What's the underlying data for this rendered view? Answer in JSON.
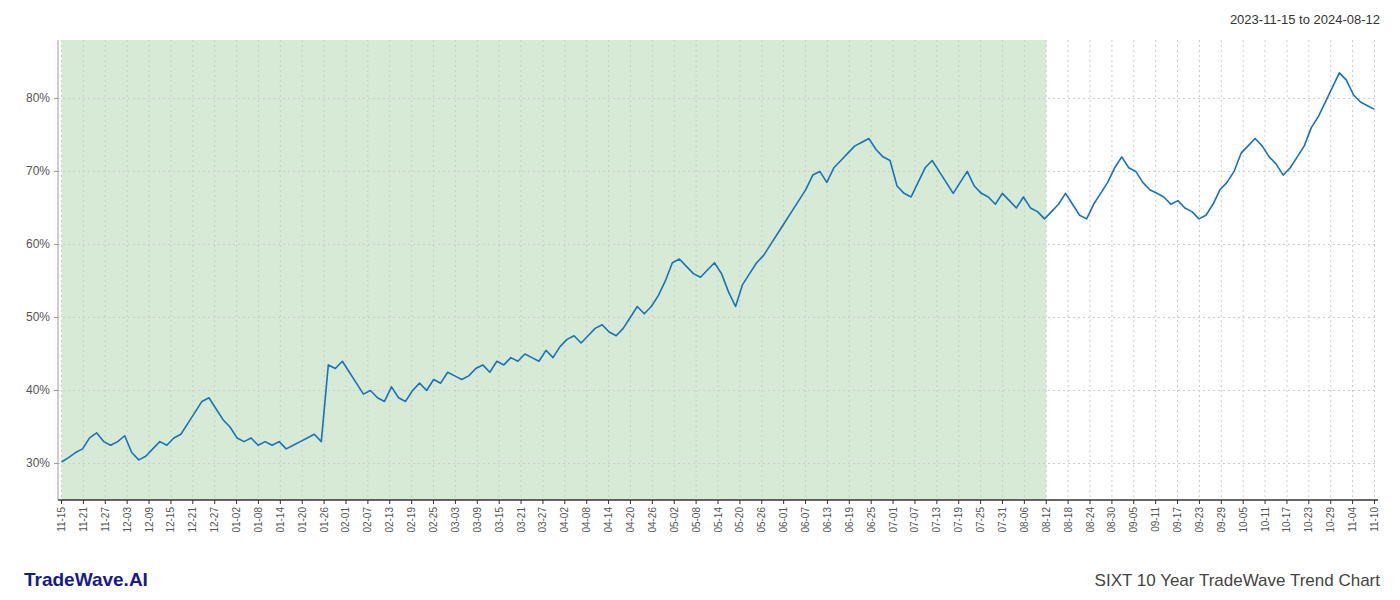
{
  "chart_data": {
    "type": "line",
    "title": "SIXT 10 Year TradeWave Trend Chart",
    "subtitle": "2023-11-15 to 2024-08-12",
    "annotations": [
      "TradeWave.AI"
    ],
    "color": "#1a72b8",
    "grid": true,
    "shaded_region": {
      "range": [
        0,
        140.25
      ],
      "color": "#d6ead6"
    },
    "xlim": [
      -0.5,
      187.5
    ],
    "xticks": [
      {
        "value": 0,
        "label": "11-15"
      },
      {
        "value": 3.116667,
        "label": "11-21"
      },
      {
        "value": 6.233333,
        "label": "11-27"
      },
      {
        "value": 9.35,
        "label": "12-03"
      },
      {
        "value": 12.466667,
        "label": "12-09"
      },
      {
        "value": 15.583333,
        "label": "12-15"
      },
      {
        "value": 18.7,
        "label": "12-21"
      },
      {
        "value": 21.816667,
        "label": "12-27"
      },
      {
        "value": 24.933333,
        "label": "01-02"
      },
      {
        "value": 28.05,
        "label": "01-08"
      },
      {
        "value": 31.166667,
        "label": "01-14"
      },
      {
        "value": 34.283333,
        "label": "01-20"
      },
      {
        "value": 37.4,
        "label": "01-26"
      },
      {
        "value": 40.516667,
        "label": "02-01"
      },
      {
        "value": 43.633333,
        "label": "02-07"
      },
      {
        "value": 46.75,
        "label": "02-13"
      },
      {
        "value": 49.866667,
        "label": "02-19"
      },
      {
        "value": 52.983333,
        "label": "02-25"
      },
      {
        "value": 56.1,
        "label": "03-03"
      },
      {
        "value": 59.216667,
        "label": "03-09"
      },
      {
        "value": 62.333333,
        "label": "03-15"
      },
      {
        "value": 65.45,
        "label": "03-21"
      },
      {
        "value": 68.566667,
        "label": "03-27"
      },
      {
        "value": 71.683333,
        "label": "04-02"
      },
      {
        "value": 74.8,
        "label": "04-08"
      },
      {
        "value": 77.916667,
        "label": "04-14"
      },
      {
        "value": 81.033333,
        "label": "04-20"
      },
      {
        "value": 84.15,
        "label": "04-26"
      },
      {
        "value": 87.266667,
        "label": "05-02"
      },
      {
        "value": 90.383333,
        "label": "05-08"
      },
      {
        "value": 93.5,
        "label": "05-14"
      },
      {
        "value": 96.616667,
        "label": "05-20"
      },
      {
        "value": 99.733333,
        "label": "05-26"
      },
      {
        "value": 102.85,
        "label": "06-01"
      },
      {
        "value": 105.966667,
        "label": "06-07"
      },
      {
        "value": 109.083333,
        "label": "06-13"
      },
      {
        "value": 112.2,
        "label": "06-19"
      },
      {
        "value": 115.316667,
        "label": "06-25"
      },
      {
        "value": 118.433333,
        "label": "07-01"
      },
      {
        "value": 121.55,
        "label": "07-07"
      },
      {
        "value": 124.666667,
        "label": "07-13"
      },
      {
        "value": 127.783333,
        "label": "07-19"
      },
      {
        "value": 130.9,
        "label": "07-25"
      },
      {
        "value": 134.016667,
        "label": "07-31"
      },
      {
        "value": 137.133333,
        "label": "08-06"
      },
      {
        "value": 140.25,
        "label": "08-12"
      },
      {
        "value": 143.366667,
        "label": "08-18"
      },
      {
        "value": 146.483333,
        "label": "08-24"
      },
      {
        "value": 149.6,
        "label": "08-30"
      },
      {
        "value": 152.716667,
        "label": "09-05"
      },
      {
        "value": 155.833333,
        "label": "09-11"
      },
      {
        "value": 158.95,
        "label": "09-17"
      },
      {
        "value": 162.066667,
        "label": "09-23"
      },
      {
        "value": 165.183333,
        "label": "09-29"
      },
      {
        "value": 168.3,
        "label": "10-05"
      },
      {
        "value": 171.416667,
        "label": "10-11"
      },
      {
        "value": 174.533333,
        "label": "10-17"
      },
      {
        "value": 177.65,
        "label": "10-23"
      },
      {
        "value": 180.766667,
        "label": "10-29"
      },
      {
        "value": 183.883333,
        "label": "11-04"
      },
      {
        "value": 187,
        "label": "11-10"
      }
    ],
    "ylim": [
      25,
      88
    ],
    "yticks": [
      {
        "value": 30,
        "label": "30%"
      },
      {
        "value": 40,
        "label": "40%"
      },
      {
        "value": 50,
        "label": "50%"
      },
      {
        "value": 60,
        "label": "60%"
      },
      {
        "value": 70,
        "label": "70%"
      },
      {
        "value": 80,
        "label": "80%"
      }
    ],
    "values": [
      30.2,
      30.8,
      31.5,
      32.0,
      33.5,
      34.2,
      33.0,
      32.5,
      33.0,
      33.8,
      31.5,
      30.5,
      31.0,
      32.0,
      33.0,
      32.5,
      33.5,
      34.0,
      35.5,
      37.0,
      38.5,
      39.0,
      37.5,
      36.0,
      35.0,
      33.5,
      33.0,
      33.5,
      32.5,
      33.0,
      32.5,
      33.0,
      32.0,
      32.5,
      33.0,
      33.5,
      34.0,
      33.0,
      43.5,
      43.0,
      44.0,
      42.5,
      41.0,
      39.5,
      40.0,
      39.0,
      38.5,
      40.5,
      39.0,
      38.5,
      40.0,
      41.0,
      40.0,
      41.5,
      41.0,
      42.5,
      42.0,
      41.5,
      42.0,
      43.0,
      43.5,
      42.5,
      44.0,
      43.5,
      44.5,
      44.0,
      45.0,
      44.5,
      44.0,
      45.5,
      44.5,
      46.0,
      47.0,
      47.5,
      46.5,
      47.5,
      48.5,
      49.0,
      48.0,
      47.5,
      48.5,
      50.0,
      51.5,
      50.5,
      51.5,
      53.0,
      55.0,
      57.5,
      58.0,
      57.0,
      56.0,
      55.5,
      56.5,
      57.5,
      56.0,
      53.5,
      51.5,
      54.5,
      56.0,
      57.5,
      58.5,
      60.0,
      61.5,
      63.0,
      64.5,
      66.0,
      67.5,
      69.5,
      70.0,
      68.5,
      70.5,
      71.5,
      72.5,
      73.5,
      74.0,
      74.5,
      73.0,
      72.0,
      71.5,
      68.0,
      67.0,
      66.5,
      68.5,
      70.5,
      71.5,
      70.0,
      68.5,
      67.0,
      68.5,
      70.0,
      68.0,
      67.0,
      66.5,
      65.5,
      67.0,
      66.0,
      65.0,
      66.5,
      65.0,
      64.5,
      63.5,
      64.5,
      65.5,
      67.0,
      65.5,
      64.0,
      63.5,
      65.5,
      67.0,
      68.5,
      70.5,
      72.0,
      70.5,
      70.0,
      68.5,
      67.5,
      67.0,
      66.5,
      65.5,
      66.0,
      65.0,
      64.5,
      63.5,
      64.0,
      65.5,
      67.5,
      68.5,
      70.0,
      72.5,
      73.5,
      74.5,
      73.5,
      72.0,
      71.0,
      69.5,
      70.5,
      72.0,
      73.5,
      76.0,
      77.5,
      79.5,
      81.5,
      83.5,
      82.5,
      80.5,
      79.5,
      79.0,
      78.5
    ]
  }
}
